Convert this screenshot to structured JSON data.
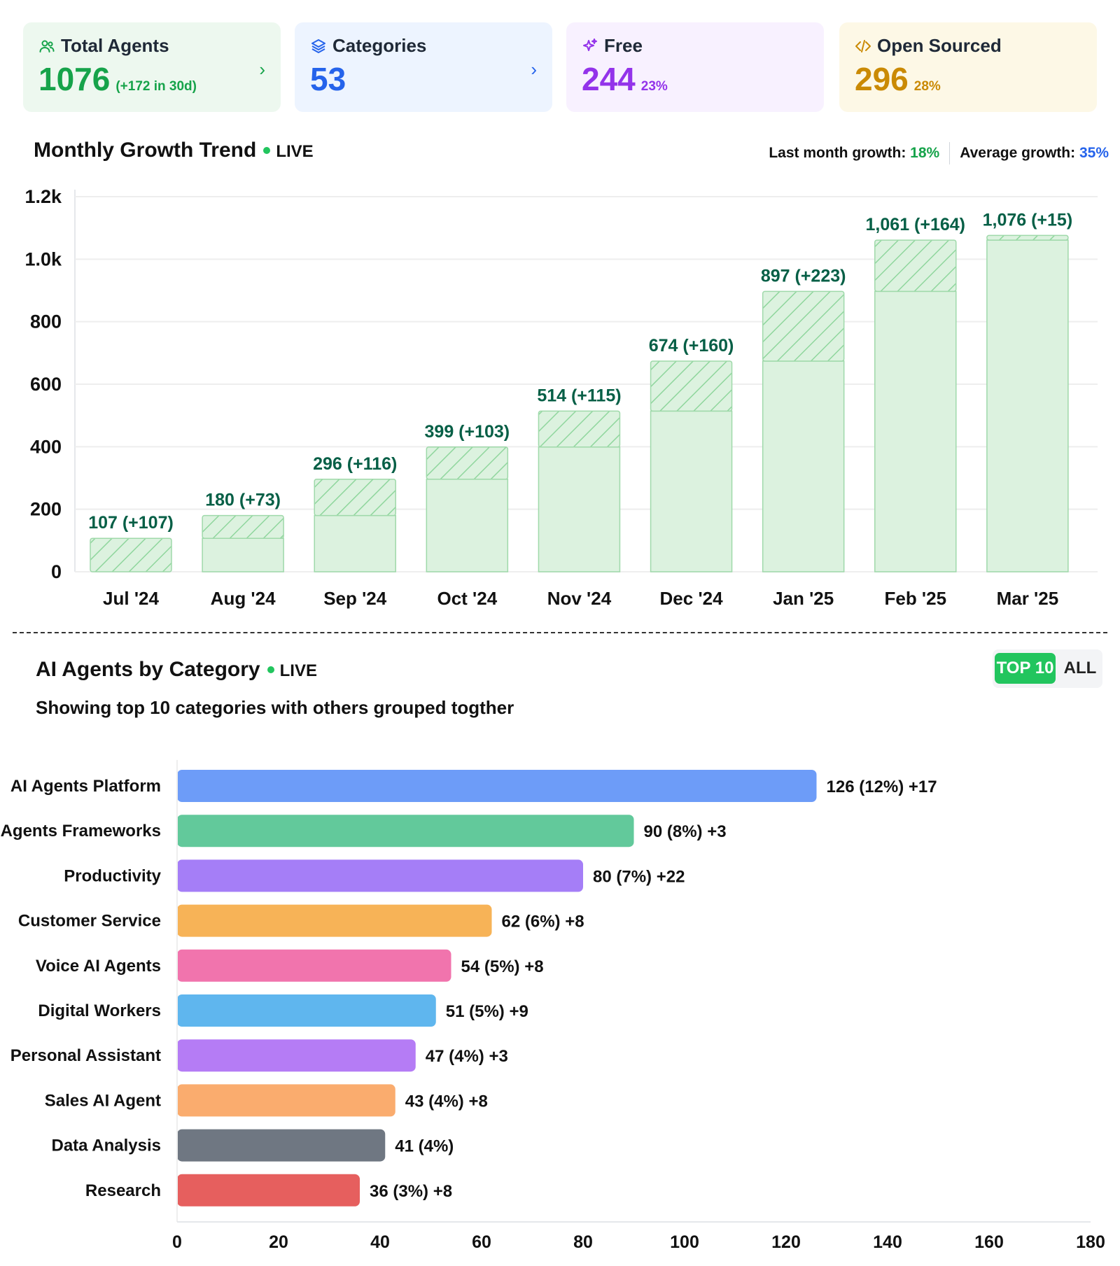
{
  "cards": [
    {
      "label": "Total Agents",
      "value": "1076",
      "sub": "(+172 in 30d)",
      "icon": "users-icon"
    },
    {
      "label": "Categories",
      "value": "53",
      "sub": "",
      "icon": "layers-icon"
    },
    {
      "label": "Free",
      "value": "244",
      "sub": "23%",
      "icon": "sparkles-icon"
    },
    {
      "label": "Open Sourced",
      "value": "296",
      "sub": "28%",
      "icon": "code-icon"
    }
  ],
  "growth": {
    "title": "Monthly Growth Trend",
    "live": "LIVE",
    "last_label": "Last month growth:",
    "last_value": "18%",
    "avg_label": "Average growth:",
    "avg_value": "35%"
  },
  "category": {
    "title": "AI Agents by Category",
    "live": "LIVE",
    "subtitle": "Showing top 10 categories with others grouped togther",
    "toggle_top": "TOP 10",
    "toggle_all": "ALL"
  },
  "chart_data": [
    {
      "type": "bar",
      "title": "Monthly Growth Trend",
      "stacked": true,
      "categories": [
        "Jul '24",
        "Aug '24",
        "Sep '24",
        "Oct '24",
        "Nov '24",
        "Dec '24",
        "Jan '25",
        "Feb '25",
        "Mar '25"
      ],
      "totals": [
        107,
        180,
        296,
        399,
        514,
        674,
        897,
        1061,
        1076
      ],
      "increments": [
        107,
        73,
        116,
        103,
        115,
        160,
        223,
        164,
        15
      ],
      "labels": [
        "107 (+107)",
        "180 (+73)",
        "296 (+116)",
        "399 (+103)",
        "514 (+115)",
        "674 (+160)",
        "897 (+223)",
        "1,061 (+164)",
        "1,076 (+15)"
      ],
      "yticks": [
        0,
        200,
        400,
        600,
        800,
        1000,
        1200
      ],
      "ytick_labels": [
        "0",
        "200",
        "400",
        "600",
        "800",
        "1.0k",
        "1.2k"
      ],
      "ylim": [
        0,
        1200
      ]
    },
    {
      "type": "bar",
      "orientation": "horizontal",
      "title": "AI Agents by Category",
      "categories": [
        "AI Agents Platform",
        "AI Agents Frameworks",
        "Productivity",
        "Customer Service",
        "Voice AI Agents",
        "Digital Workers",
        "Personal Assistant",
        "Sales AI Agent",
        "Data Analysis",
        "Research"
      ],
      "values": [
        126,
        90,
        80,
        62,
        54,
        51,
        47,
        43,
        41,
        36
      ],
      "labels": [
        "126 (12%) +17",
        "90 (8%) +3",
        "80 (7%) +22",
        "62 (6%) +8",
        "54 (5%) +8",
        "51 (5%) +9",
        "47 (4%) +3",
        "43 (4%) +8",
        "41 (4%)",
        "36 (3%) +8"
      ],
      "colors": [
        "#6d9cf8",
        "#62c99b",
        "#a57ef7",
        "#f7b357",
        "#f174ad",
        "#5fb6ee",
        "#b57cf5",
        "#faac6e",
        "#6f7782",
        "#e65f5e"
      ],
      "xticks": [
        0,
        20,
        40,
        60,
        80,
        100,
        120,
        140,
        160,
        180
      ],
      "xlim": [
        0,
        180
      ]
    }
  ]
}
